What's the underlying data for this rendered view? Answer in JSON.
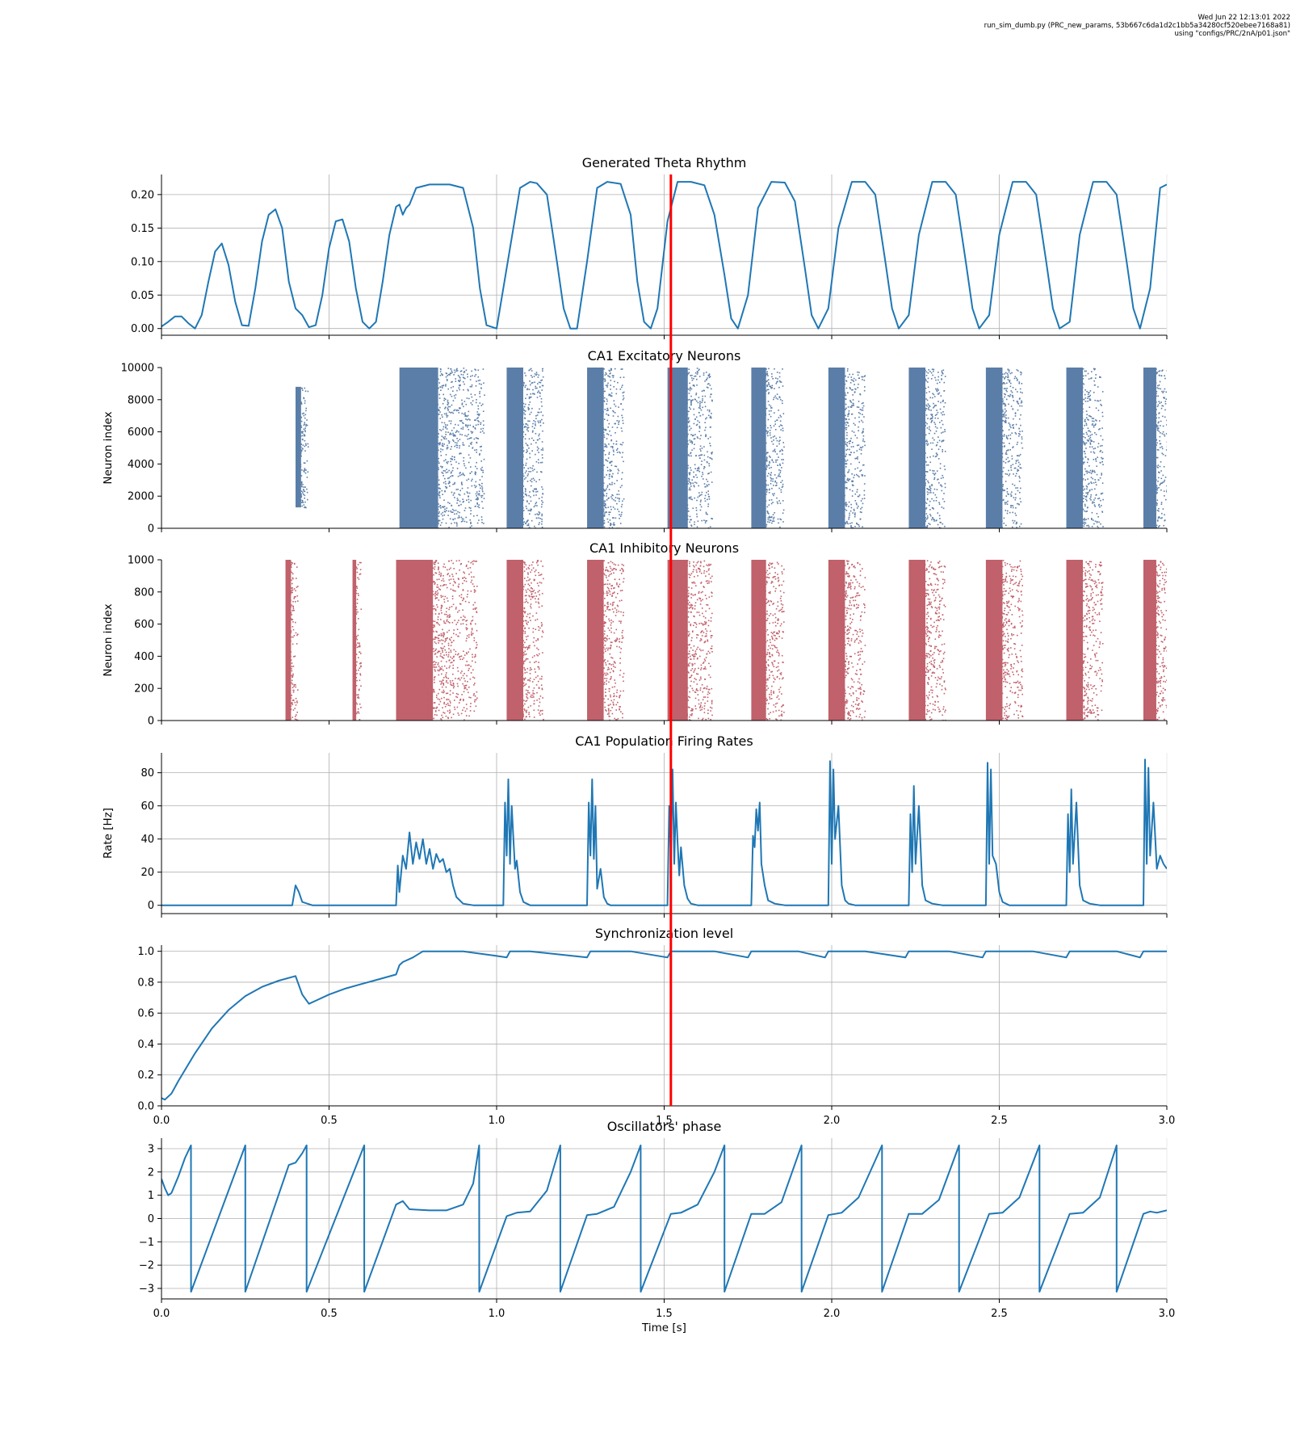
{
  "header": {
    "line1": "Wed Jun 22 12:13:01 2022",
    "line2": "run_sim_dumb.py (PRC_new_params, 53b667c6da1d2c1bb5a34280cf520ebee7168a81)",
    "line3": "using \"configs/PRC/2nA/p01.json\""
  },
  "colors": {
    "line": "#1f77b4",
    "excitatory": "#5b7ea8",
    "inhibitory": "#c0616b",
    "marker": "#ff0000",
    "grid": "#b0b0b0"
  },
  "chart_data": [
    {
      "id": "theta",
      "type": "line",
      "title": "Generated Theta Rhythm",
      "ylabel": "",
      "xlim": [
        0,
        3
      ],
      "ylim": [
        -0.01,
        0.23
      ],
      "xticks": [
        "0.0",
        "0.5",
        "1.0",
        "1.5",
        "2.0",
        "2.5",
        "3.0"
      ],
      "show_xticklabels": false,
      "yticks": [
        0.0,
        0.05,
        0.1,
        0.15,
        0.2
      ],
      "yticklabels": [
        "0.00",
        "0.05",
        "0.10",
        "0.15",
        "0.20"
      ],
      "grid": true,
      "x": [
        0.0,
        0.02,
        0.04,
        0.06,
        0.08,
        0.1,
        0.12,
        0.14,
        0.16,
        0.18,
        0.2,
        0.22,
        0.24,
        0.26,
        0.28,
        0.3,
        0.32,
        0.34,
        0.36,
        0.38,
        0.4,
        0.42,
        0.44,
        0.46,
        0.48,
        0.5,
        0.52,
        0.54,
        0.56,
        0.58,
        0.6,
        0.62,
        0.64,
        0.66,
        0.68,
        0.7,
        0.71,
        0.72,
        0.73,
        0.74,
        0.76,
        0.8,
        0.86,
        0.9,
        0.93,
        0.95,
        0.97,
        1.0,
        1.04,
        1.07,
        1.1,
        1.12,
        1.15,
        1.18,
        1.2,
        1.22,
        1.24,
        1.27,
        1.3,
        1.33,
        1.37,
        1.4,
        1.42,
        1.44,
        1.46,
        1.48,
        1.51,
        1.54,
        1.58,
        1.62,
        1.65,
        1.68,
        1.7,
        1.72,
        1.75,
        1.78,
        1.82,
        1.86,
        1.89,
        1.92,
        1.94,
        1.96,
        1.99,
        2.02,
        2.06,
        2.1,
        2.13,
        2.16,
        2.18,
        2.2,
        2.23,
        2.26,
        2.3,
        2.34,
        2.37,
        2.4,
        2.42,
        2.44,
        2.47,
        2.5,
        2.54,
        2.58,
        2.61,
        2.64,
        2.66,
        2.68,
        2.71,
        2.74,
        2.78,
        2.82,
        2.85,
        2.88,
        2.9,
        2.92,
        2.95,
        2.98,
        3.0
      ],
      "y": [
        0.003,
        0.01,
        0.018,
        0.018,
        0.008,
        0.0,
        0.02,
        0.07,
        0.115,
        0.127,
        0.095,
        0.04,
        0.005,
        0.004,
        0.06,
        0.13,
        0.17,
        0.178,
        0.15,
        0.07,
        0.03,
        0.02,
        0.002,
        0.005,
        0.05,
        0.12,
        0.16,
        0.163,
        0.13,
        0.06,
        0.01,
        0.0,
        0.01,
        0.07,
        0.14,
        0.182,
        0.185,
        0.17,
        0.18,
        0.185,
        0.21,
        0.215,
        0.215,
        0.21,
        0.15,
        0.06,
        0.005,
        0.0,
        0.12,
        0.21,
        0.219,
        0.217,
        0.2,
        0.1,
        0.03,
        0.0,
        0.0,
        0.1,
        0.21,
        0.219,
        0.216,
        0.17,
        0.07,
        0.01,
        0.0,
        0.03,
        0.16,
        0.219,
        0.219,
        0.214,
        0.17,
        0.08,
        0.015,
        0.0,
        0.05,
        0.18,
        0.219,
        0.218,
        0.19,
        0.09,
        0.02,
        0.0,
        0.03,
        0.15,
        0.219,
        0.219,
        0.2,
        0.1,
        0.03,
        0.0,
        0.02,
        0.14,
        0.219,
        0.219,
        0.2,
        0.1,
        0.03,
        0.0,
        0.02,
        0.14,
        0.219,
        0.219,
        0.2,
        0.1,
        0.03,
        0.0,
        0.01,
        0.14,
        0.219,
        0.219,
        0.2,
        0.1,
        0.03,
        0.0,
        0.06,
        0.21,
        0.215
      ]
    },
    {
      "id": "excitatory",
      "type": "scatter",
      "title": "CA1 Excitatory Neurons",
      "ylabel": "Neuron index",
      "xlim": [
        0,
        3
      ],
      "ylim": [
        0,
        10000
      ],
      "xticks": [
        "0.0",
        "0.5",
        "1.0",
        "1.5",
        "2.0",
        "2.5",
        "3.0"
      ],
      "show_xticklabels": false,
      "yticks": [
        0,
        2000,
        4000,
        6000,
        8000,
        10000
      ],
      "yticklabels": [
        "0",
        "2000",
        "4000",
        "6000",
        "8000",
        "10000"
      ],
      "grid": false,
      "bursts": [
        {
          "start": 0.4,
          "end": 0.43,
          "ymin": 1300,
          "ymax": 8800
        },
        {
          "start": 0.71,
          "end": 0.92,
          "ymin": 0,
          "ymax": 10000
        },
        {
          "start": 1.03,
          "end": 1.12,
          "ymin": 0,
          "ymax": 10000
        },
        {
          "start": 1.27,
          "end": 1.36,
          "ymin": 0,
          "ymax": 10000
        },
        {
          "start": 1.51,
          "end": 1.62,
          "ymin": 0,
          "ymax": 10000
        },
        {
          "start": 1.76,
          "end": 1.84,
          "ymin": 0,
          "ymax": 10000
        },
        {
          "start": 1.99,
          "end": 2.08,
          "ymin": 0,
          "ymax": 10000
        },
        {
          "start": 2.23,
          "end": 2.32,
          "ymin": 0,
          "ymax": 10000
        },
        {
          "start": 2.46,
          "end": 2.55,
          "ymin": 0,
          "ymax": 10000
        },
        {
          "start": 2.7,
          "end": 2.79,
          "ymin": 0,
          "ymax": 10000
        },
        {
          "start": 2.93,
          "end": 3.0,
          "ymin": 0,
          "ymax": 10000
        }
      ]
    },
    {
      "id": "inhibitory",
      "type": "scatter",
      "title": "CA1 Inhibitory Neurons",
      "ylabel": "Neuron index",
      "xlim": [
        0,
        3
      ],
      "ylim": [
        0,
        1000
      ],
      "xticks": [
        "0.0",
        "0.5",
        "1.0",
        "1.5",
        "2.0",
        "2.5",
        "3.0"
      ],
      "show_xticklabels": false,
      "yticks": [
        0,
        200,
        400,
        600,
        800,
        1000
      ],
      "yticklabels": [
        "0",
        "200",
        "400",
        "600",
        "800",
        "1000"
      ],
      "grid": false,
      "bursts": [
        {
          "start": 0.37,
          "end": 0.4,
          "ymin": 0,
          "ymax": 1000
        },
        {
          "start": 0.57,
          "end": 0.59,
          "ymin": 0,
          "ymax": 1000
        },
        {
          "start": 0.7,
          "end": 0.9,
          "ymin": 0,
          "ymax": 1000
        },
        {
          "start": 1.03,
          "end": 1.12,
          "ymin": 0,
          "ymax": 1000
        },
        {
          "start": 1.27,
          "end": 1.36,
          "ymin": 0,
          "ymax": 1000
        },
        {
          "start": 1.51,
          "end": 1.62,
          "ymin": 0,
          "ymax": 1000
        },
        {
          "start": 1.76,
          "end": 1.84,
          "ymin": 0,
          "ymax": 1000
        },
        {
          "start": 1.99,
          "end": 2.08,
          "ymin": 0,
          "ymax": 1000
        },
        {
          "start": 2.23,
          "end": 2.32,
          "ymin": 0,
          "ymax": 1000
        },
        {
          "start": 2.46,
          "end": 2.55,
          "ymin": 0,
          "ymax": 1000
        },
        {
          "start": 2.7,
          "end": 2.79,
          "ymin": 0,
          "ymax": 1000
        },
        {
          "start": 2.93,
          "end": 3.0,
          "ymin": 0,
          "ymax": 1000
        }
      ]
    },
    {
      "id": "rates",
      "type": "line",
      "title": "CA1 Population Firing Rates",
      "ylabel": "Rate [Hz]",
      "xlim": [
        0,
        3
      ],
      "ylim": [
        -5,
        92
      ],
      "xticks": [
        "0.0",
        "0.5",
        "1.0",
        "1.5",
        "2.0",
        "2.5",
        "3.0"
      ],
      "show_xticklabels": false,
      "yticks": [
        0,
        20,
        40,
        60,
        80
      ],
      "yticklabels": [
        "0",
        "20",
        "40",
        "60",
        "80"
      ],
      "grid": true,
      "x": [
        0.0,
        0.39,
        0.4,
        0.41,
        0.42,
        0.45,
        0.7,
        0.705,
        0.71,
        0.72,
        0.73,
        0.74,
        0.75,
        0.76,
        0.77,
        0.78,
        0.79,
        0.8,
        0.81,
        0.82,
        0.83,
        0.84,
        0.85,
        0.86,
        0.87,
        0.88,
        0.9,
        0.93,
        1.02,
        1.025,
        1.03,
        1.035,
        1.04,
        1.045,
        1.05,
        1.055,
        1.06,
        1.07,
        1.08,
        1.09,
        1.1,
        1.13,
        1.27,
        1.275,
        1.28,
        1.285,
        1.29,
        1.295,
        1.3,
        1.31,
        1.32,
        1.33,
        1.34,
        1.37,
        1.51,
        1.515,
        1.52,
        1.525,
        1.53,
        1.535,
        1.54,
        1.545,
        1.55,
        1.56,
        1.57,
        1.58,
        1.6,
        1.63,
        1.76,
        1.765,
        1.77,
        1.775,
        1.78,
        1.785,
        1.79,
        1.8,
        1.81,
        1.83,
        1.86,
        1.99,
        1.995,
        2.0,
        2.005,
        2.01,
        2.02,
        2.03,
        2.04,
        2.05,
        2.07,
        2.1,
        2.23,
        2.235,
        2.24,
        2.245,
        2.25,
        2.26,
        2.27,
        2.28,
        2.3,
        2.33,
        2.46,
        2.465,
        2.47,
        2.475,
        2.48,
        2.49,
        2.5,
        2.51,
        2.53,
        2.56,
        2.7,
        2.705,
        2.71,
        2.715,
        2.72,
        2.73,
        2.74,
        2.75,
        2.77,
        2.8,
        2.93,
        2.935,
        2.94,
        2.945,
        2.95,
        2.96,
        2.97,
        2.98,
        2.99,
        3.0
      ],
      "y": [
        0,
        0,
        12,
        8,
        2,
        0,
        0,
        24,
        8,
        30,
        22,
        44,
        25,
        38,
        28,
        40,
        25,
        34,
        22,
        31,
        26,
        28,
        20,
        22,
        12,
        5,
        1,
        0,
        0,
        62,
        30,
        76,
        25,
        60,
        40,
        22,
        27,
        8,
        2,
        1,
        0,
        0,
        0,
        62,
        30,
        76,
        28,
        60,
        10,
        22,
        5,
        1,
        0,
        0,
        0,
        60,
        30,
        82,
        25,
        62,
        38,
        18,
        35,
        12,
        4,
        1,
        0,
        0,
        0,
        42,
        35,
        58,
        45,
        62,
        25,
        12,
        3,
        1,
        0,
        0,
        87,
        25,
        82,
        40,
        60,
        12,
        3,
        1,
        0,
        0,
        0,
        55,
        20,
        72,
        25,
        60,
        12,
        3,
        1,
        0,
        0,
        86,
        25,
        82,
        30,
        25,
        8,
        2,
        0,
        0,
        0,
        55,
        20,
        70,
        25,
        62,
        12,
        3,
        1,
        0,
        0,
        88,
        25,
        83,
        30,
        62,
        22,
        30,
        25,
        22
      ]
    },
    {
      "id": "sync",
      "type": "line",
      "title": "Synchronization level",
      "ylabel": "",
      "xlim": [
        0,
        3
      ],
      "ylim": [
        0,
        1.04
      ],
      "xticks": [
        "0.0",
        "0.5",
        "1.0",
        "1.5",
        "2.0",
        "2.5",
        "3.0"
      ],
      "show_xticklabels": true,
      "yticks": [
        0.0,
        0.2,
        0.4,
        0.6,
        0.8,
        1.0
      ],
      "yticklabels": [
        "0.0",
        "0.2",
        "0.4",
        "0.6",
        "0.8",
        "1.0"
      ],
      "grid": true,
      "x": [
        0.0,
        0.01,
        0.03,
        0.05,
        0.1,
        0.15,
        0.2,
        0.25,
        0.3,
        0.35,
        0.4,
        0.42,
        0.44,
        0.46,
        0.5,
        0.55,
        0.6,
        0.65,
        0.7,
        0.71,
        0.72,
        0.75,
        0.78,
        0.8,
        0.9,
        1.0,
        1.03,
        1.04,
        1.1,
        1.27,
        1.28,
        1.4,
        1.51,
        1.52,
        1.65,
        1.75,
        1.76,
        1.9,
        1.98,
        1.99,
        2.1,
        2.22,
        2.23,
        2.35,
        2.45,
        2.46,
        2.6,
        2.7,
        2.71,
        2.85,
        2.92,
        2.93,
        3.0
      ],
      "y": [
        0.05,
        0.04,
        0.08,
        0.16,
        0.34,
        0.5,
        0.62,
        0.71,
        0.77,
        0.81,
        0.84,
        0.72,
        0.66,
        0.68,
        0.72,
        0.76,
        0.79,
        0.82,
        0.85,
        0.91,
        0.93,
        0.96,
        1.0,
        1.0,
        1.0,
        0.97,
        0.96,
        1.0,
        1.0,
        0.96,
        1.0,
        1.0,
        0.96,
        1.0,
        1.0,
        0.96,
        1.0,
        1.0,
        0.96,
        1.0,
        1.0,
        0.96,
        1.0,
        1.0,
        0.96,
        1.0,
        1.0,
        0.96,
        1.0,
        1.0,
        0.96,
        1.0,
        1.0
      ]
    },
    {
      "id": "phase",
      "type": "line",
      "title": "Oscillators' phase",
      "ylabel": "",
      "xlabel": "Time [s]",
      "xlim": [
        0,
        3
      ],
      "ylim": [
        -3.45,
        3.45
      ],
      "xticks": [
        "0.0",
        "0.5",
        "1.0",
        "1.5",
        "2.0",
        "2.5",
        "3.0"
      ],
      "show_xticklabels": true,
      "yticks": [
        -3,
        -2,
        -1,
        0,
        1,
        2,
        3
      ],
      "yticklabels": [
        "−3",
        "−2",
        "−1",
        "0",
        "1",
        "2",
        "3"
      ],
      "grid": true,
      "x": [
        0.0,
        0.01,
        0.02,
        0.03,
        0.05,
        0.07,
        0.088,
        0.0881,
        0.25,
        0.2501,
        0.38,
        0.4,
        0.42,
        0.433,
        0.4331,
        0.605,
        0.6051,
        0.7,
        0.72,
        0.74,
        0.76,
        0.8,
        0.85,
        0.9,
        0.93,
        0.948,
        0.9481,
        1.03,
        1.06,
        1.1,
        1.15,
        1.19,
        1.1901,
        1.27,
        1.3,
        1.35,
        1.4,
        1.43,
        1.4301,
        1.52,
        1.55,
        1.6,
        1.65,
        1.68,
        1.6801,
        1.76,
        1.8,
        1.85,
        1.91,
        1.9101,
        1.99,
        2.03,
        2.08,
        2.15,
        2.1501,
        2.23,
        2.27,
        2.32,
        2.38,
        2.3801,
        2.47,
        2.51,
        2.56,
        2.62,
        2.6201,
        2.71,
        2.75,
        2.8,
        2.85,
        2.8501,
        2.93,
        2.95,
        2.97,
        3.0
      ],
      "y": [
        1.7,
        1.3,
        1.0,
        1.1,
        1.8,
        2.6,
        3.14,
        -3.14,
        3.14,
        -3.14,
        2.3,
        2.4,
        2.8,
        3.14,
        -3.14,
        3.14,
        -3.14,
        0.6,
        0.75,
        0.4,
        0.38,
        0.35,
        0.35,
        0.6,
        1.5,
        3.14,
        -3.14,
        0.1,
        0.25,
        0.3,
        1.2,
        3.14,
        -3.14,
        0.15,
        0.2,
        0.5,
        2.0,
        3.14,
        -3.14,
        0.2,
        0.25,
        0.6,
        2.0,
        3.14,
        -3.14,
        0.2,
        0.2,
        0.7,
        3.14,
        -3.14,
        0.15,
        0.25,
        0.9,
        3.14,
        -3.14,
        0.2,
        0.2,
        0.8,
        3.14,
        -3.14,
        0.2,
        0.25,
        0.9,
        3.14,
        -3.14,
        0.2,
        0.25,
        0.9,
        3.14,
        -3.14,
        0.2,
        0.3,
        0.25,
        0.35
      ]
    }
  ],
  "marker": {
    "time": 1.52
  }
}
